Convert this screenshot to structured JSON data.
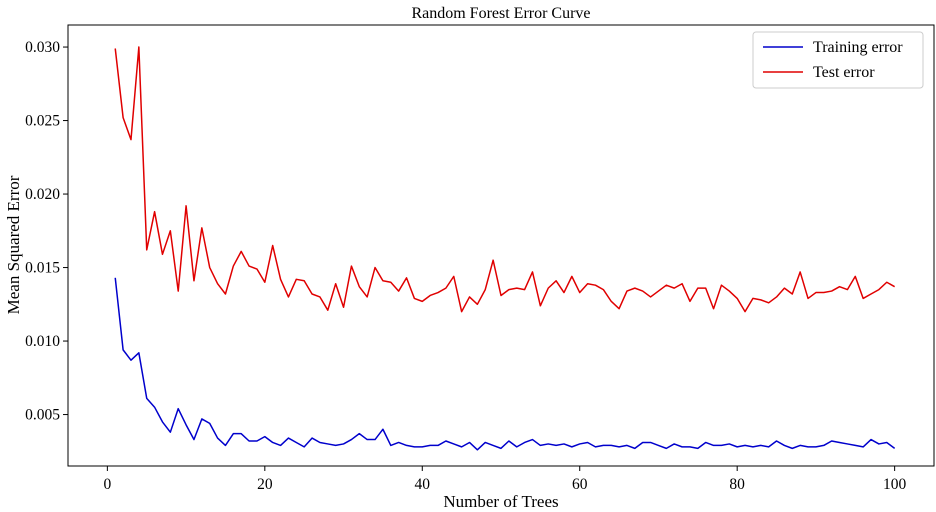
{
  "chart_data": {
    "type": "line",
    "title": "Random Forest Error Curve",
    "xlabel": "Number of Trees",
    "ylabel": "Mean Squared Error",
    "xlim": [
      -5,
      105
    ],
    "ylim": [
      0.0015,
      0.0315
    ],
    "xticks": [
      0,
      20,
      40,
      60,
      80,
      100
    ],
    "xtick_labels": [
      "0",
      "20",
      "40",
      "60",
      "80",
      "100"
    ],
    "yticks": [
      0.005,
      0.01,
      0.015,
      0.02,
      0.025,
      0.03
    ],
    "ytick_labels": [
      "0.005",
      "0.010",
      "0.015",
      "0.020",
      "0.025",
      "0.030"
    ],
    "grid": false,
    "legend_position": "top-right",
    "x": [
      1,
      2,
      3,
      4,
      5,
      6,
      7,
      8,
      9,
      10,
      11,
      12,
      13,
      14,
      15,
      16,
      17,
      18,
      19,
      20,
      21,
      22,
      23,
      24,
      25,
      26,
      27,
      28,
      29,
      30,
      31,
      32,
      33,
      34,
      35,
      36,
      37,
      38,
      39,
      40,
      41,
      42,
      43,
      44,
      45,
      46,
      47,
      48,
      49,
      50,
      51,
      52,
      53,
      54,
      55,
      56,
      57,
      58,
      59,
      60,
      61,
      62,
      63,
      64,
      65,
      66,
      67,
      68,
      69,
      70,
      71,
      72,
      73,
      74,
      75,
      76,
      77,
      78,
      79,
      80,
      81,
      82,
      83,
      84,
      85,
      86,
      87,
      88,
      89,
      90,
      91,
      92,
      93,
      94,
      95,
      96,
      97,
      98,
      99,
      100
    ],
    "series": [
      {
        "name": "Training error",
        "color": "#0000cc",
        "values": [
          0.0143,
          0.0094,
          0.0087,
          0.0092,
          0.0061,
          0.0055,
          0.0045,
          0.0038,
          0.0054,
          0.0043,
          0.0033,
          0.0047,
          0.0044,
          0.0034,
          0.0029,
          0.0037,
          0.0037,
          0.0032,
          0.0032,
          0.0035,
          0.0031,
          0.0029,
          0.0034,
          0.0031,
          0.0028,
          0.0034,
          0.0031,
          0.003,
          0.0029,
          0.003,
          0.0033,
          0.0037,
          0.0033,
          0.0033,
          0.004,
          0.0029,
          0.0031,
          0.0029,
          0.0028,
          0.0028,
          0.0029,
          0.0029,
          0.0032,
          0.003,
          0.0028,
          0.0031,
          0.0026,
          0.0031,
          0.0029,
          0.0027,
          0.0032,
          0.0028,
          0.0031,
          0.0033,
          0.0029,
          0.003,
          0.0029,
          0.003,
          0.0028,
          0.003,
          0.0031,
          0.0028,
          0.0029,
          0.0029,
          0.0028,
          0.0029,
          0.0027,
          0.0031,
          0.0031,
          0.0029,
          0.0027,
          0.003,
          0.0028,
          0.0028,
          0.0027,
          0.0031,
          0.0029,
          0.0029,
          0.003,
          0.0028,
          0.0029,
          0.0028,
          0.0029,
          0.0028,
          0.0032,
          0.0029,
          0.0027,
          0.0029,
          0.0028,
          0.0028,
          0.0029,
          0.0032,
          0.0031,
          0.003,
          0.0029,
          0.0028,
          0.0033,
          0.003,
          0.0031,
          0.0027
        ]
      },
      {
        "name": "Test error",
        "color": "#e00000",
        "values": [
          0.0299,
          0.0252,
          0.0237,
          0.03,
          0.0162,
          0.0188,
          0.0159,
          0.0175,
          0.0134,
          0.0192,
          0.0141,
          0.0177,
          0.015,
          0.0139,
          0.0132,
          0.0151,
          0.0161,
          0.0151,
          0.0149,
          0.014,
          0.0165,
          0.0142,
          0.013,
          0.0142,
          0.0141,
          0.0132,
          0.013,
          0.0121,
          0.0139,
          0.0123,
          0.0151,
          0.0137,
          0.013,
          0.015,
          0.0141,
          0.014,
          0.0134,
          0.0143,
          0.0129,
          0.0127,
          0.0131,
          0.0133,
          0.0136,
          0.0144,
          0.012,
          0.013,
          0.0125,
          0.0135,
          0.0155,
          0.0131,
          0.0135,
          0.0136,
          0.0135,
          0.0147,
          0.0124,
          0.0136,
          0.0141,
          0.0133,
          0.0144,
          0.0133,
          0.0139,
          0.0138,
          0.0135,
          0.0127,
          0.0122,
          0.0134,
          0.0136,
          0.0134,
          0.013,
          0.0134,
          0.0138,
          0.0136,
          0.0139,
          0.0127,
          0.0136,
          0.0136,
          0.0122,
          0.0138,
          0.0134,
          0.0129,
          0.012,
          0.0129,
          0.0128,
          0.0126,
          0.013,
          0.0136,
          0.0132,
          0.0147,
          0.0129,
          0.0133,
          0.0133,
          0.0134,
          0.0137,
          0.0135,
          0.0144,
          0.0129,
          0.0132,
          0.0135,
          0.014,
          0.0137
        ]
      }
    ]
  }
}
